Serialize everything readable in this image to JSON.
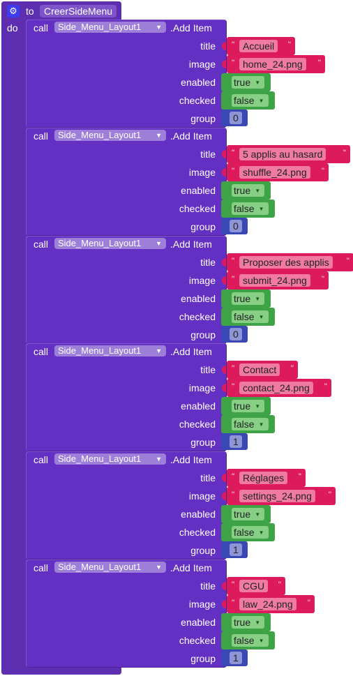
{
  "procedure": {
    "to_keyword": "to",
    "name": "CreerSideMenu",
    "do_keyword": "do",
    "icon": "gear-icon"
  },
  "labels": {
    "call": "call",
    "title": "title",
    "image": "image",
    "enabled": "enabled",
    "checked": "checked",
    "group": "group"
  },
  "calls": [
    {
      "component": "Side_Menu_Layout1",
      "method": ".Add Item",
      "title": "Accueil",
      "image": "home_24.png",
      "enabled": "true",
      "checked": "false",
      "group": "0"
    },
    {
      "component": "Side_Menu_Layout1",
      "method": ".Add Item",
      "title": "5 applis au hasard",
      "image": "shuffle_24.png",
      "enabled": "true",
      "checked": "false",
      "group": "0"
    },
    {
      "component": "Side_Menu_Layout1",
      "method": ".Add Item",
      "title": "Proposer des applis",
      "image": "submit_24.png",
      "enabled": "true",
      "checked": "false",
      "group": "0"
    },
    {
      "component": "Side_Menu_Layout1",
      "method": ".Add Item",
      "title": "Contact",
      "image": "contact_24.png",
      "enabled": "true",
      "checked": "false",
      "group": "1"
    },
    {
      "component": "Side_Menu_Layout1",
      "method": ".Add Item",
      "title": "Réglages",
      "image": "settings_24.png",
      "enabled": "true",
      "checked": "false",
      "group": "1"
    },
    {
      "component": "Side_Menu_Layout1",
      "method": ".Add Item",
      "title": "CGU",
      "image": "law_24.png",
      "enabled": "true",
      "checked": "false",
      "group": "1"
    }
  ],
  "colors": {
    "procedure": "#5d2fb0",
    "call_block": "#6430c4",
    "text_block": "#dd1b5c",
    "logic_block": "#3da346",
    "math_block": "#3a48b5"
  }
}
